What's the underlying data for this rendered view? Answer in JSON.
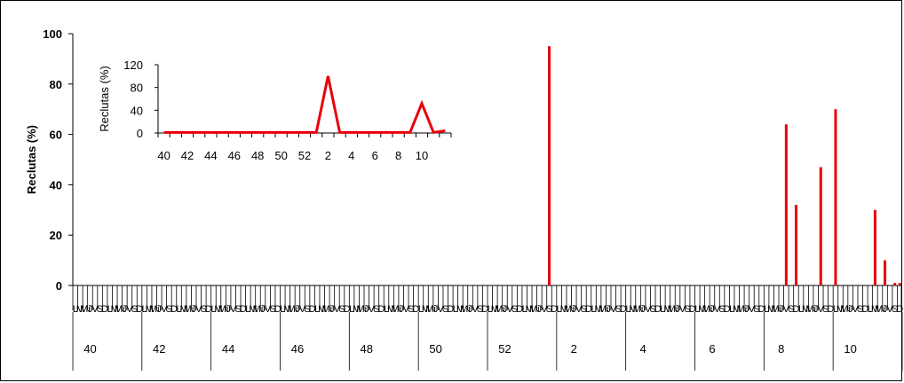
{
  "chart_data": [
    {
      "type": "bar",
      "ylabel": "Reclutas (%)",
      "ylim": [
        0,
        100
      ],
      "yticks": [
        0,
        20,
        40,
        60,
        80,
        100
      ],
      "day_labels": [
        "L",
        "M",
        "Mi",
        "J",
        "V",
        "S",
        "D"
      ],
      "week_range": [
        40,
        63
      ],
      "week_labels": [
        "40",
        "42",
        "44",
        "46",
        "48",
        "50",
        "52",
        "2",
        "4",
        "6",
        "8",
        "10"
      ],
      "bar_color": "#e8000b",
      "bars": [
        {
          "week": 53,
          "day": "S",
          "value": 95
        },
        {
          "week": 60,
          "day": "V",
          "value": 64
        },
        {
          "week": 60,
          "day": "D",
          "value": 32
        },
        {
          "week": 61,
          "day": "V",
          "value": 47
        },
        {
          "week": 62,
          "day": "L",
          "value": 70
        },
        {
          "week": 63,
          "day": "M",
          "value": 30
        },
        {
          "week": 63,
          "day": "J",
          "value": 10
        },
        {
          "week": 63,
          "day": "S",
          "value": 1
        },
        {
          "week": 63,
          "day": "D",
          "value": 1
        }
      ]
    },
    {
      "type": "line",
      "ylabel": "Reclutas (%)",
      "ylim": [
        0,
        120
      ],
      "yticks": [
        0,
        40,
        80,
        120
      ],
      "x_tick_labels": [
        "40",
        "42",
        "44",
        "46",
        "48",
        "50",
        "52",
        "2",
        "4",
        "6",
        "8",
        "10"
      ],
      "line_color": "#e8000b",
      "series": [
        {
          "values": [
            1,
            1,
            1,
            1,
            1,
            1,
            1,
            1,
            1,
            1,
            1,
            1,
            1,
            1,
            100,
            1,
            1,
            1,
            1,
            1,
            1,
            1,
            52,
            1,
            4
          ]
        }
      ]
    }
  ]
}
